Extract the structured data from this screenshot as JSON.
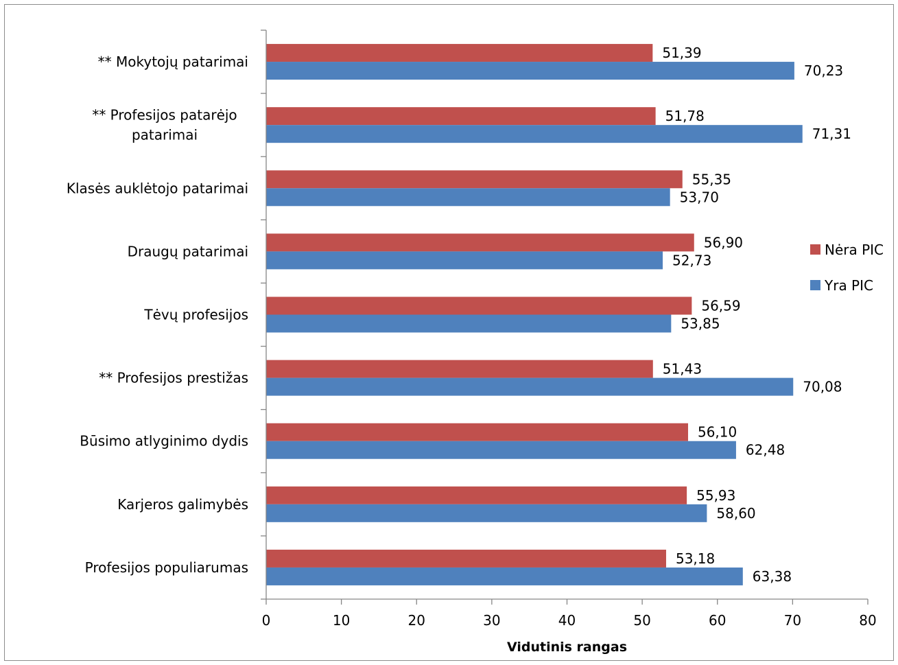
{
  "chart_data": {
    "type": "bar",
    "orientation": "horizontal",
    "categories": [
      [
        "** Mokytojų patarimai"
      ],
      [
        "** Profesijos patarėjo",
        "patarimai"
      ],
      [
        "Klasės auklėtojo patarimai"
      ],
      [
        "Draugų patarimai"
      ],
      [
        "Tėvų profesijos"
      ],
      [
        "** Profesijos prestižas"
      ],
      [
        "Būsimo atlyginimo dydis"
      ],
      [
        "Karjeros galimybės"
      ],
      [
        "Profesijos populiarumas"
      ]
    ],
    "series": [
      {
        "name": "Nėra PIC",
        "color": "#C0504D",
        "values": [
          51.39,
          51.78,
          55.35,
          56.9,
          56.59,
          51.43,
          56.1,
          55.93,
          53.18
        ],
        "labels": [
          "51,39",
          "51,78",
          "55,35",
          "56,90",
          "56,59",
          "51,43",
          "56,10",
          "55,93",
          "53,18"
        ]
      },
      {
        "name": "Yra PIC",
        "color": "#4F81BD",
        "values": [
          70.23,
          71.31,
          53.7,
          52.73,
          53.85,
          70.08,
          62.48,
          58.6,
          63.38
        ],
        "labels": [
          "70,23",
          "71,31",
          "53,70",
          "52,73",
          "53,85",
          "70,08",
          "62,48",
          "58,60",
          "63,38"
        ]
      }
    ],
    "xlim": [
      0,
      80
    ],
    "xticks": [
      0,
      10,
      20,
      30,
      40,
      50,
      60,
      70,
      80
    ],
    "xlabel": "Vidutinis rangas",
    "ylabel": "",
    "title": "",
    "grid": false,
    "legend_position": "right"
  }
}
